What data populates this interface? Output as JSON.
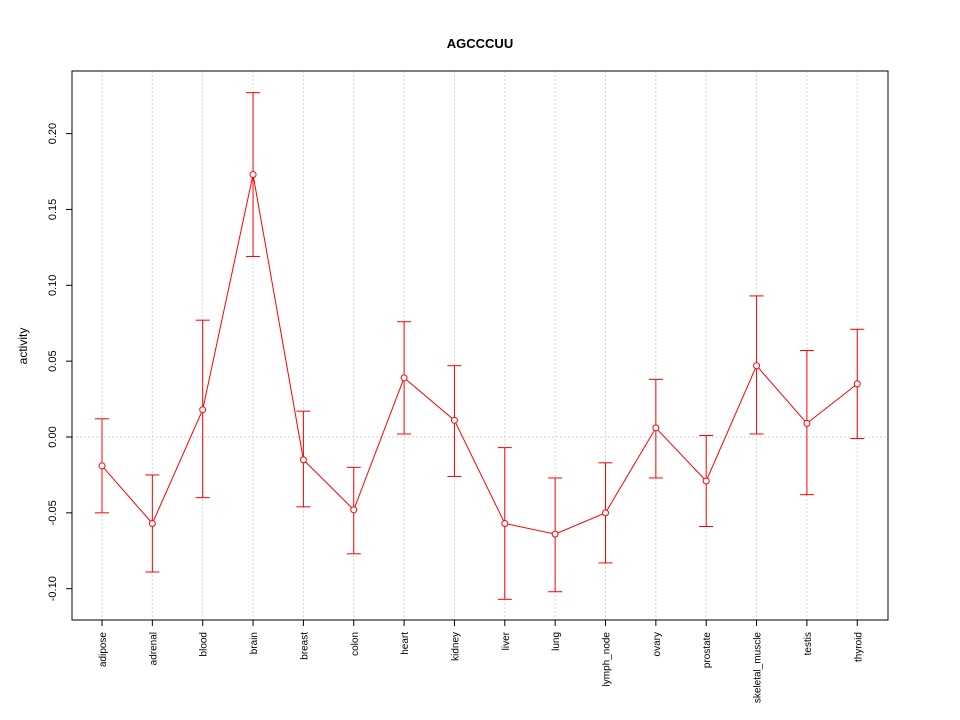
{
  "chart_data": {
    "type": "line",
    "title": "AGCCCUU",
    "xlabel": "",
    "ylabel": "activity",
    "ylim": [
      -0.12,
      0.24
    ],
    "yticks": [
      -0.1,
      -0.05,
      0.0,
      0.05,
      0.1,
      0.15,
      0.2
    ],
    "ytick_labels": [
      "-0.10",
      "-0.05",
      "0.00",
      "0.05",
      "0.10",
      "0.15",
      "0.20"
    ],
    "grid": true,
    "reference_line": 0,
    "categories": [
      "adipose",
      "adrenal",
      "blood",
      "brain",
      "breast",
      "colon",
      "heart",
      "kidney",
      "liver",
      "lung",
      "lymph_node",
      "ovary",
      "prostate",
      "skeletal_muscle",
      "testis",
      "thyroid"
    ],
    "series": [
      {
        "name": "activity",
        "color": "#ff0000",
        "values": [
          -0.019,
          -0.057,
          0.018,
          0.173,
          -0.015,
          -0.048,
          0.039,
          0.011,
          -0.057,
          -0.064,
          -0.05,
          0.006,
          -0.029,
          0.047,
          0.009,
          0.035
        ],
        "lower": [
          -0.05,
          -0.089,
          -0.04,
          0.119,
          -0.046,
          -0.077,
          0.002,
          -0.026,
          -0.107,
          -0.102,
          -0.083,
          -0.027,
          -0.059,
          0.002,
          -0.038,
          -0.001
        ],
        "upper": [
          0.012,
          -0.025,
          0.077,
          0.227,
          0.017,
          -0.02,
          0.076,
          0.047,
          -0.007,
          -0.027,
          -0.017,
          0.038,
          0.001,
          0.093,
          0.057,
          0.071
        ]
      }
    ]
  }
}
